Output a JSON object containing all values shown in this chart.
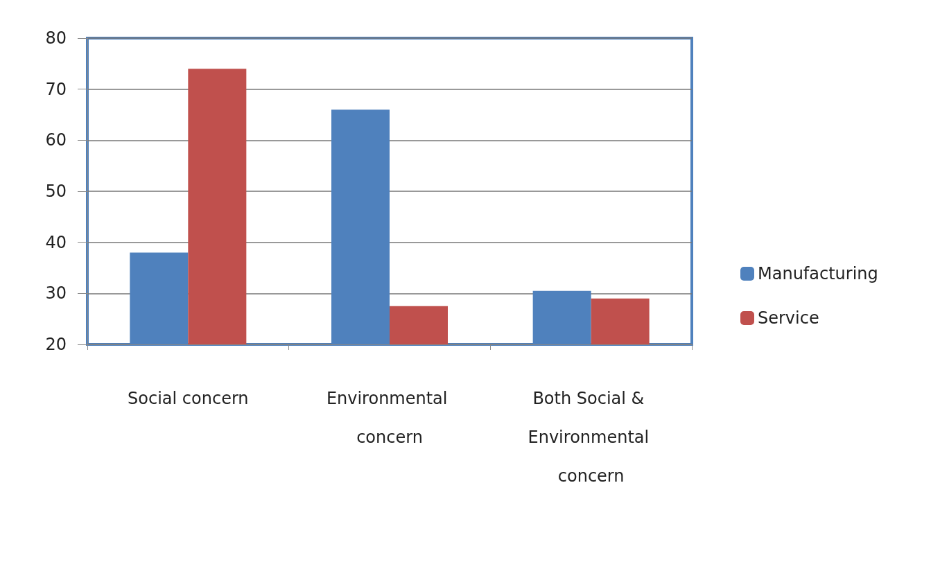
{
  "chart_data": {
    "type": "bar",
    "categories": [
      "Social concern",
      "Environmental concern",
      "Both Social & Environmental concern"
    ],
    "series": [
      {
        "name": "Manufacturing",
        "color": "#4f81bd",
        "values": [
          38,
          66,
          30.5
        ]
      },
      {
        "name": "Service",
        "color": "#c0504d",
        "values": [
          74,
          27.5,
          29
        ]
      }
    ],
    "ylim": [
      20,
      80
    ],
    "yticks": [
      20,
      30,
      40,
      50,
      60,
      70,
      80
    ],
    "grid": "y",
    "legend": "right"
  }
}
